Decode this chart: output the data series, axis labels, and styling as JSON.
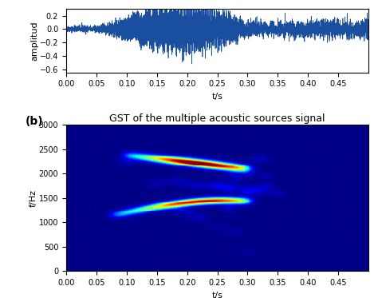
{
  "top_plot": {
    "ylim": [
      -0.65,
      0.3
    ],
    "xlim": [
      0,
      0.5
    ],
    "yticks": [
      0.2,
      0,
      -0.2,
      -0.4,
      -0.6
    ],
    "xticks": [
      0,
      0.05,
      0.1,
      0.15,
      0.2,
      0.25,
      0.3,
      0.35,
      0.4,
      0.45
    ],
    "xlabel": "t/s",
    "ylabel": "amplitud",
    "line_color": "#1a4fa0",
    "line_width": 0.5,
    "fs": 8000,
    "duration": 0.5
  },
  "bottom_plot": {
    "title": "GST of the multiple acoustic sources signal",
    "xlabel": "t/s",
    "ylabel": "f/Hz",
    "xlim": [
      0,
      0.5
    ],
    "ylim": [
      0,
      3000
    ],
    "yticks": [
      0,
      500,
      1000,
      1500,
      2000,
      2500,
      3000
    ],
    "xticks": [
      0,
      0.05,
      0.1,
      0.15,
      0.2,
      0.25,
      0.3,
      0.35,
      0.4,
      0.45
    ],
    "label_b": "(b)",
    "cmap": "jet"
  },
  "figure": {
    "bg_color": "#ffffff",
    "title_fontsize": 9,
    "label_fontsize": 8,
    "tick_fontsize": 7
  }
}
